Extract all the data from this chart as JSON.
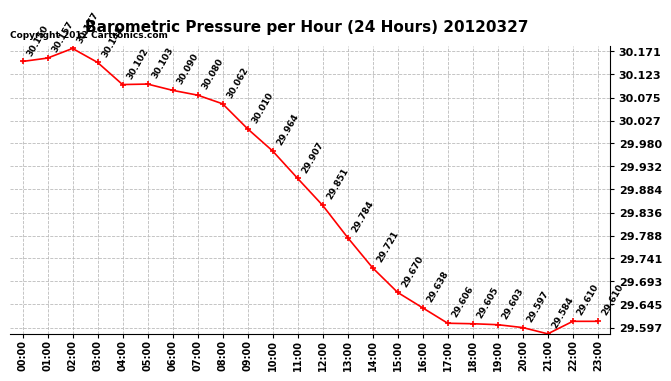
{
  "title": "Barometric Pressure per Hour (24 Hours) 20120327",
  "copyright": "Copyright 2012 Cartronics.com",
  "hours": [
    0,
    1,
    2,
    3,
    4,
    5,
    6,
    7,
    8,
    9,
    10,
    11,
    12,
    13,
    14,
    15,
    16,
    17,
    18,
    19,
    20,
    21,
    22,
    23
  ],
  "hour_labels": [
    "00:00",
    "01:00",
    "02:00",
    "03:00",
    "04:00",
    "05:00",
    "06:00",
    "07:00",
    "08:00",
    "09:00",
    "10:00",
    "11:00",
    "12:00",
    "13:00",
    "14:00",
    "15:00",
    "16:00",
    "17:00",
    "18:00",
    "19:00",
    "20:00",
    "21:00",
    "22:00",
    "23:00"
  ],
  "values": [
    30.15,
    30.157,
    30.177,
    30.148,
    30.102,
    30.103,
    30.09,
    30.08,
    30.062,
    30.01,
    29.964,
    29.907,
    29.851,
    29.784,
    29.721,
    29.67,
    29.638,
    29.606,
    29.605,
    29.603,
    29.597,
    29.584,
    29.61,
    29.61
  ],
  "ylim_min": 29.583,
  "ylim_max": 30.183,
  "yticks": [
    30.171,
    30.123,
    30.075,
    30.027,
    29.98,
    29.932,
    29.884,
    29.836,
    29.788,
    29.741,
    29.693,
    29.645,
    29.597
  ],
  "line_color": "red",
  "marker_color": "red",
  "bg_color": "white",
  "grid_color": "#bbbbbb",
  "title_fontsize": 11,
  "label_fontsize": 7,
  "annot_fontsize": 6.5,
  "copyright_fontsize": 6.5
}
